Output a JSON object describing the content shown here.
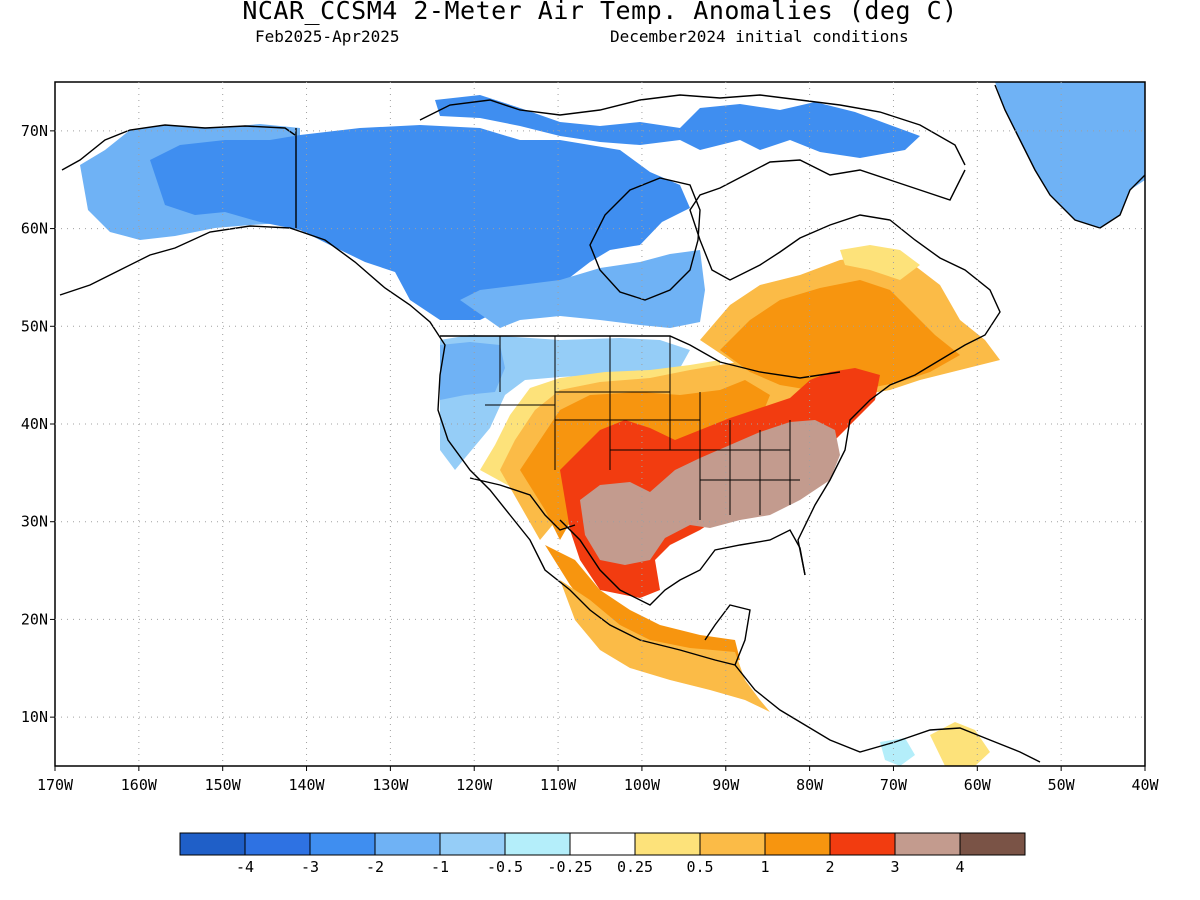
{
  "title": "NCAR_CCSM4 2-Meter Air Temp. Anomalies (deg C)",
  "subtitle_left": "Feb2025-Apr2025",
  "subtitle_right": "December2024 initial conditions",
  "axes": {
    "lon_labels": [
      "170W",
      "160W",
      "150W",
      "140W",
      "130W",
      "120W",
      "110W",
      "100W",
      "90W",
      "80W",
      "70W",
      "60W",
      "50W",
      "40W"
    ],
    "lat_labels": [
      "10N",
      "20N",
      "30N",
      "40N",
      "50N",
      "60N",
      "70N"
    ],
    "lon_range": [
      -170,
      -40
    ],
    "lat_range": [
      5,
      75
    ],
    "grid": "dotted"
  },
  "colorbar": {
    "labels": [
      "-4",
      "-3",
      "-2",
      "-1",
      "-0.5",
      "-0.25",
      "0.25",
      "0.5",
      "1",
      "2",
      "3",
      "4"
    ],
    "colors": [
      "#1f5fc8",
      "#2e72e3",
      "#3f8ef0",
      "#6fb2f5",
      "#95cdf7",
      "#b4eefa",
      "#ffffff",
      "#fde27a",
      "#fbbb47",
      "#f7950f",
      "#f23c10",
      "#c39b8e",
      "#7a5346"
    ]
  },
  "regions": [
    {
      "name": "alaska-cold",
      "level": "-2"
    },
    {
      "name": "canada-cold",
      "level": "-3"
    },
    {
      "name": "northwest-cool",
      "level": "-1"
    },
    {
      "name": "southwest-warm",
      "level": "1"
    },
    {
      "name": "central-us-warm",
      "level": "2"
    },
    {
      "name": "northeast-warm",
      "level": "3"
    },
    {
      "name": "southeast-us-hot",
      "level": "4"
    },
    {
      "name": "mexico-warm",
      "level": "1"
    },
    {
      "name": "quebec-warm",
      "level": "2"
    },
    {
      "name": "greenland-cool",
      "level": "-1"
    }
  ]
}
